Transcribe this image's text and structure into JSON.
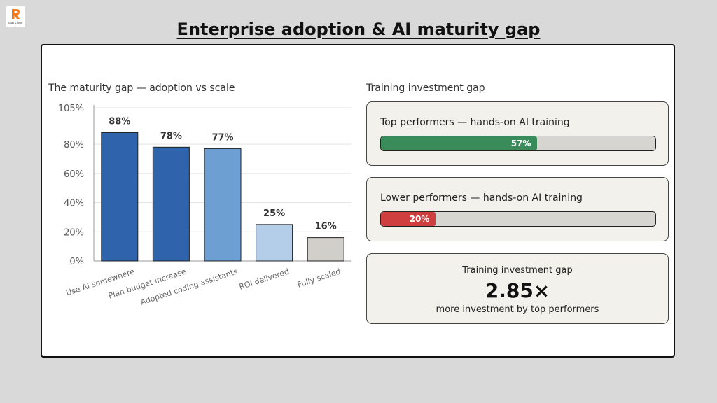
{
  "header": {
    "logo_text": "raas cloud",
    "title": "Enterprise adoption & AI maturity gap"
  },
  "chart": {
    "title": "The maturity gap — adoption vs scale"
  },
  "chart_data": {
    "type": "bar",
    "categories": [
      "Use AI somewhere",
      "Plan budget increase",
      "Adopted coding assistants",
      "ROI delivered",
      "Fully scaled"
    ],
    "values": [
      88,
      78,
      77,
      25,
      16
    ],
    "value_labels": [
      "88%",
      "78%",
      "77%",
      "25%",
      "16%"
    ],
    "bar_colors": [
      "#2f63ab",
      "#2f63ab",
      "#6e9fd3",
      "#b4cde9",
      "#d0cfca"
    ],
    "ylim": [
      0,
      105
    ],
    "yticks": [
      0,
      20,
      40,
      60,
      80,
      105
    ],
    "ytick_labels": [
      "0%",
      "20%",
      "40%",
      "60%",
      "80%",
      "105%"
    ],
    "grid": true,
    "title": "The maturity gap — adoption vs scale"
  },
  "training": {
    "title": "Training investment gap",
    "top": {
      "label": "Top performers — hands-on AI training",
      "value": 57,
      "value_label": "57%",
      "color": "#398c5a"
    },
    "lower": {
      "label": "Lower performers — hands-on AI training",
      "value": 20,
      "value_label": "20%",
      "color": "#cf3f3f"
    },
    "gap": {
      "label": "Training investment gap",
      "value": "2.85×",
      "sub": "more investment by top performers"
    }
  }
}
